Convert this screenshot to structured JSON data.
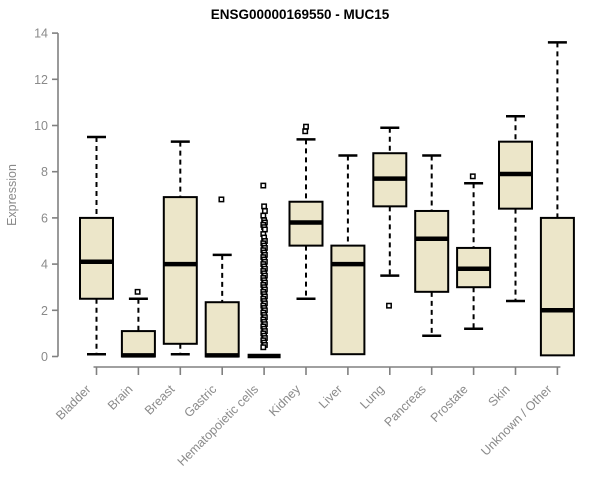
{
  "title": "ENSG00000169550 - MUC15",
  "chart_data": {
    "type": "boxplot",
    "title": "ENSG00000169550 - MUC15",
    "xlabel": "",
    "ylabel": "Expression",
    "ylim": [
      0,
      14
    ],
    "yticks": [
      0,
      2,
      4,
      6,
      8,
      10,
      12,
      14
    ],
    "grid": false,
    "legend": false,
    "colors": {
      "box_fill": "#ECE6C9",
      "box_border": "#000000",
      "median": "#000000",
      "whisker": "#000000",
      "axis": "#808080",
      "tick_label": "#8a8a8a",
      "title": "#000000",
      "background": "#ffffff"
    },
    "categories": [
      "Bladder",
      "Brain",
      "Breast",
      "Gastric",
      "Hematopoietic cells",
      "Kidney",
      "Liver",
      "Lung",
      "Pancreas",
      "Prostate",
      "Skin",
      "Unknown / Other"
    ],
    "boxes": [
      {
        "category": "Bladder",
        "whisker_low": 0.1,
        "q1": 2.5,
        "median": 4.1,
        "q3": 6.0,
        "whisker_high": 9.5,
        "outliers": []
      },
      {
        "category": "Brain",
        "whisker_low": 0,
        "q1": 0,
        "median": 0.05,
        "q3": 1.1,
        "whisker_high": 2.5,
        "outliers": [
          2.8
        ]
      },
      {
        "category": "Breast",
        "whisker_low": 0.1,
        "q1": 0.55,
        "median": 4.0,
        "q3": 6.9,
        "whisker_high": 9.3,
        "outliers": []
      },
      {
        "category": "Gastric",
        "whisker_low": 0,
        "q1": 0,
        "median": 0.05,
        "q3": 2.35,
        "whisker_high": 4.4,
        "outliers": [
          6.8
        ]
      },
      {
        "category": "Hematopoietic cells",
        "whisker_low": 0,
        "q1": 0,
        "median": 0.02,
        "q3": 0,
        "whisker_high": 0,
        "outliers": [
          7.4,
          6.5,
          6.3,
          6.1,
          5.9,
          5.8,
          5.7,
          5.6,
          5.5,
          5.3,
          5.15,
          5.0,
          4.9,
          4.8,
          4.7,
          4.6,
          4.5,
          4.4,
          4.3,
          4.2,
          4.1,
          4.0,
          3.9,
          3.8,
          3.7,
          3.6,
          3.5,
          3.4,
          3.3,
          3.2,
          3.1,
          3.0,
          2.9,
          2.8,
          2.7,
          2.6,
          2.5,
          2.4,
          2.3,
          2.2,
          2.1,
          2.0,
          1.9,
          1.8,
          1.7,
          1.6,
          1.5,
          1.4,
          1.3,
          1.2,
          1.1,
          1.0,
          0.9,
          0.8,
          0.7,
          0.6,
          0.5,
          0.4
        ]
      },
      {
        "category": "Kidney",
        "whisker_low": 2.5,
        "q1": 4.8,
        "median": 5.8,
        "q3": 6.7,
        "whisker_high": 9.4,
        "outliers": [
          9.75,
          9.95
        ]
      },
      {
        "category": "Liver",
        "whisker_low": 0.1,
        "q1": 0.1,
        "median": 4.0,
        "q3": 4.8,
        "whisker_high": 8.7,
        "outliers": []
      },
      {
        "category": "Lung",
        "whisker_low": 3.5,
        "q1": 6.5,
        "median": 7.7,
        "q3": 8.8,
        "whisker_high": 9.9,
        "outliers": [
          2.2
        ]
      },
      {
        "category": "Pancreas",
        "whisker_low": 0.9,
        "q1": 2.8,
        "median": 5.1,
        "q3": 6.3,
        "whisker_high": 8.7,
        "outliers": []
      },
      {
        "category": "Prostate",
        "whisker_low": 1.2,
        "q1": 3.0,
        "median": 3.8,
        "q3": 4.7,
        "whisker_high": 7.5,
        "outliers": [
          7.8
        ]
      },
      {
        "category": "Skin",
        "whisker_low": 2.4,
        "q1": 6.4,
        "median": 7.9,
        "q3": 9.3,
        "whisker_high": 10.4,
        "outliers": []
      },
      {
        "category": "Unknown / Other",
        "whisker_low": 0.05,
        "q1": 0.05,
        "median": 2.0,
        "q3": 6.0,
        "whisker_high": 13.6,
        "outliers": []
      }
    ]
  }
}
